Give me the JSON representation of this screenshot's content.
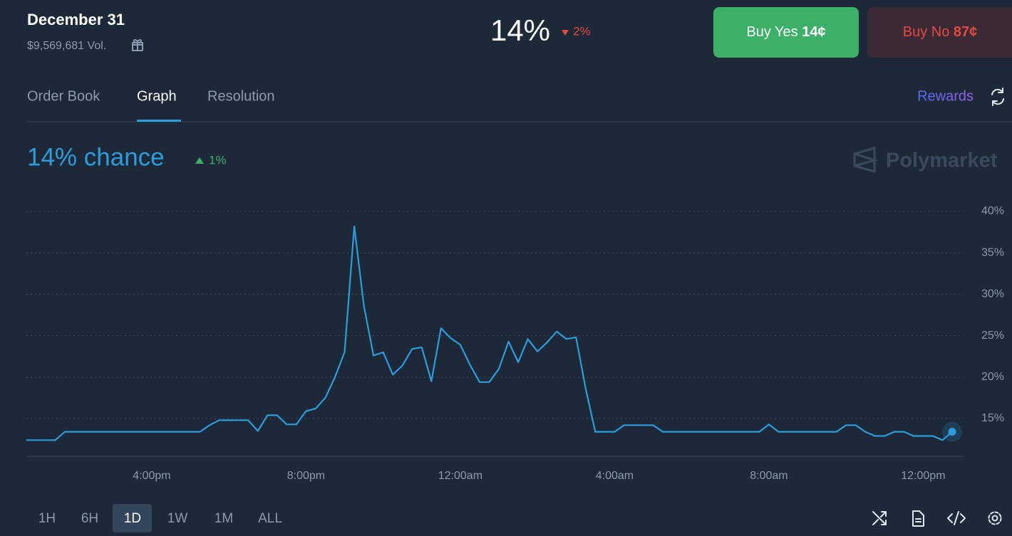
{
  "header": {
    "title": "December 31",
    "volume": "$9,569,681 Vol."
  },
  "price": {
    "current": "14%",
    "change": "2%"
  },
  "buttons": {
    "buy_yes": {
      "label": "Buy Yes",
      "price": "14¢"
    },
    "buy_no": {
      "label": "Buy No",
      "price": "87¢"
    }
  },
  "tabs": [
    "Order Book",
    "Graph",
    "Resolution"
  ],
  "rewards": "Rewards",
  "chance": {
    "text": "14% chance",
    "change": "1%"
  },
  "brand": "Polymarket",
  "ranges": [
    "1H",
    "6H",
    "1D",
    "1W",
    "1M",
    "ALL"
  ],
  "chart_data": {
    "type": "line",
    "color": "#2d9cdb",
    "grid": true,
    "categories": [
      null,
      null,
      null,
      null,
      null,
      null,
      null,
      null,
      null,
      null,
      null,
      null,
      null,
      "4:00pm",
      null,
      null,
      null,
      null,
      null,
      null,
      null,
      null,
      null,
      null,
      null,
      null,
      null,
      null,
      null,
      "8:00pm",
      null,
      null,
      null,
      null,
      null,
      null,
      null,
      null,
      null,
      null,
      null,
      null,
      null,
      null,
      null,
      "12:00am",
      null,
      null,
      null,
      null,
      null,
      null,
      null,
      null,
      null,
      null,
      null,
      null,
      null,
      null,
      null,
      "4:00am",
      null,
      null,
      null,
      null,
      null,
      null,
      null,
      null,
      null,
      null,
      null,
      null,
      null,
      null,
      null,
      "8:00am",
      null,
      null,
      null,
      null,
      null,
      null,
      null,
      null,
      null,
      null,
      null,
      null,
      null,
      null,
      null,
      "12:00pm",
      null,
      null,
      null
    ],
    "values": [
      12.4,
      12.4,
      12.4,
      12.4,
      13.4,
      13.4,
      13.4,
      13.4,
      13.4,
      13.4,
      13.4,
      13.4,
      13.4,
      13.4,
      13.4,
      13.4,
      13.4,
      13.4,
      13.4,
      14.2,
      14.8,
      14.8,
      14.8,
      14.8,
      13.5,
      15.4,
      15.4,
      14.3,
      14.3,
      15.9,
      16.2,
      17.5,
      20.0,
      23.0,
      38.2,
      28.6,
      22.6,
      23.0,
      20.3,
      21.4,
      23.4,
      23.6,
      19.5,
      25.9,
      24.7,
      23.9,
      21.5,
      19.4,
      19.4,
      21.0,
      24.3,
      21.8,
      24.6,
      23.1,
      24.2,
      25.5,
      24.6,
      24.8,
      18.6,
      13.4,
      13.4,
      13.4,
      14.2,
      14.2,
      14.2,
      14.2,
      13.4,
      13.4,
      13.4,
      13.4,
      13.4,
      13.4,
      13.4,
      13.4,
      13.4,
      13.4,
      13.4,
      14.3,
      13.4,
      13.4,
      13.4,
      13.4,
      13.4,
      13.4,
      13.4,
      14.2,
      14.2,
      13.4,
      12.9,
      12.9,
      13.4,
      13.4,
      12.9,
      12.9,
      12.9,
      12.4,
      13.4
    ],
    "ylim": [
      10.5,
      40
    ],
    "yticks": [
      {
        "value": 15,
        "label": "15%"
      },
      {
        "value": 20,
        "label": "20%"
      },
      {
        "value": 25,
        "label": "25%"
      },
      {
        "value": 30,
        "label": "30%"
      },
      {
        "value": 35,
        "label": "35%"
      },
      {
        "value": 40,
        "label": "40%"
      }
    ]
  }
}
